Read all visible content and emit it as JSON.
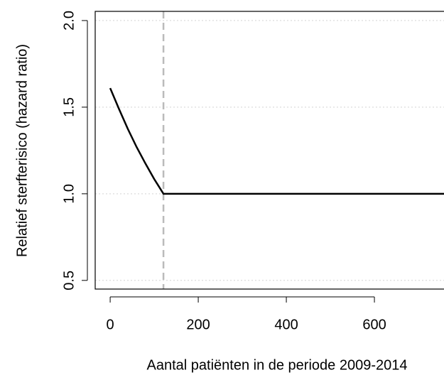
{
  "chart_data": {
    "type": "line",
    "xlabel": "Aantal patiënten in de periode 2009-2014",
    "ylabel": "Relatief sterfterisico (hazard ratio)",
    "series": [
      {
        "color": "#000000",
        "x": [
          0,
          20,
          40,
          60,
          80,
          100,
          121,
          758
        ],
        "values": [
          1.61,
          1.49,
          1.375,
          1.27,
          1.175,
          1.085,
          1.0,
          1.0
        ]
      }
    ],
    "vline": {
      "x": 121,
      "color": "#bbbbbb"
    },
    "xlim": [
      -34,
      758
    ],
    "ylim": [
      0.45,
      2.053
    ],
    "xticks": [
      0,
      200,
      400,
      600
    ],
    "yticks": [
      {
        "value": 0.5,
        "label": "0.5"
      },
      {
        "value": 1,
        "label": "1.0"
      },
      1.5,
      {
        "value": 2,
        "label": "2.0"
      }
    ],
    "grid": true
  }
}
